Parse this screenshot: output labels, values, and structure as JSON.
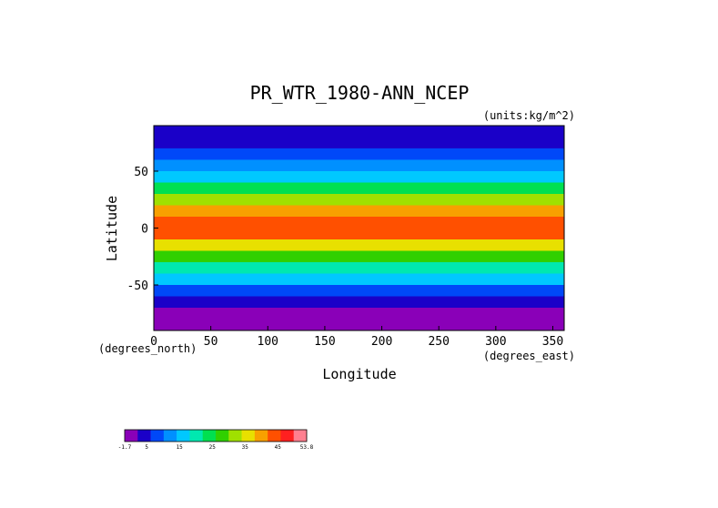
{
  "chart_data": {
    "type": "heatmap",
    "title": "PR_WTR_1980-ANN_NCEP",
    "units": "(units:kg/m^2)",
    "xlabel": "Longitude",
    "ylabel": "Latitude",
    "x_units": "(degrees_east)",
    "y_units": "(degrees_north)",
    "xlim": [
      0,
      360
    ],
    "ylim": [
      -90,
      90
    ],
    "x_ticks": [
      0,
      50,
      100,
      150,
      200,
      250,
      300,
      350
    ],
    "y_ticks": [
      50,
      0,
      -50
    ],
    "lat_profile": [
      {
        "lat": 90,
        "value": 2
      },
      {
        "lat": 80,
        "value": 4
      },
      {
        "lat": 70,
        "value": 7
      },
      {
        "lat": 60,
        "value": 12
      },
      {
        "lat": 50,
        "value": 15
      },
      {
        "lat": 40,
        "value": 21
      },
      {
        "lat": 30,
        "value": 27
      },
      {
        "lat": 20,
        "value": 36
      },
      {
        "lat": 10,
        "value": 45
      },
      {
        "lat": 0,
        "value": 46
      },
      {
        "lat": -10,
        "value": 42
      },
      {
        "lat": -20,
        "value": 32
      },
      {
        "lat": -30,
        "value": 23
      },
      {
        "lat": -40,
        "value": 17
      },
      {
        "lat": -50,
        "value": 12
      },
      {
        "lat": -60,
        "value": 7
      },
      {
        "lat": -70,
        "value": 3
      },
      {
        "lat": -80,
        "value": 1
      },
      {
        "lat": -90,
        "value": 0
      }
    ],
    "colorbar": {
      "ticks": [
        "-1.7",
        "5",
        "15",
        "25",
        "35",
        "45",
        "53.8"
      ],
      "colors": [
        "#8a00b8",
        "#1a00c8",
        "#0048f8",
        "#0090ff",
        "#00c8ff",
        "#00e8b0",
        "#00e050",
        "#30d000",
        "#a0e000",
        "#e8e000",
        "#f8a000",
        "#ff5000",
        "#ff2020",
        "#ff8090"
      ]
    }
  }
}
